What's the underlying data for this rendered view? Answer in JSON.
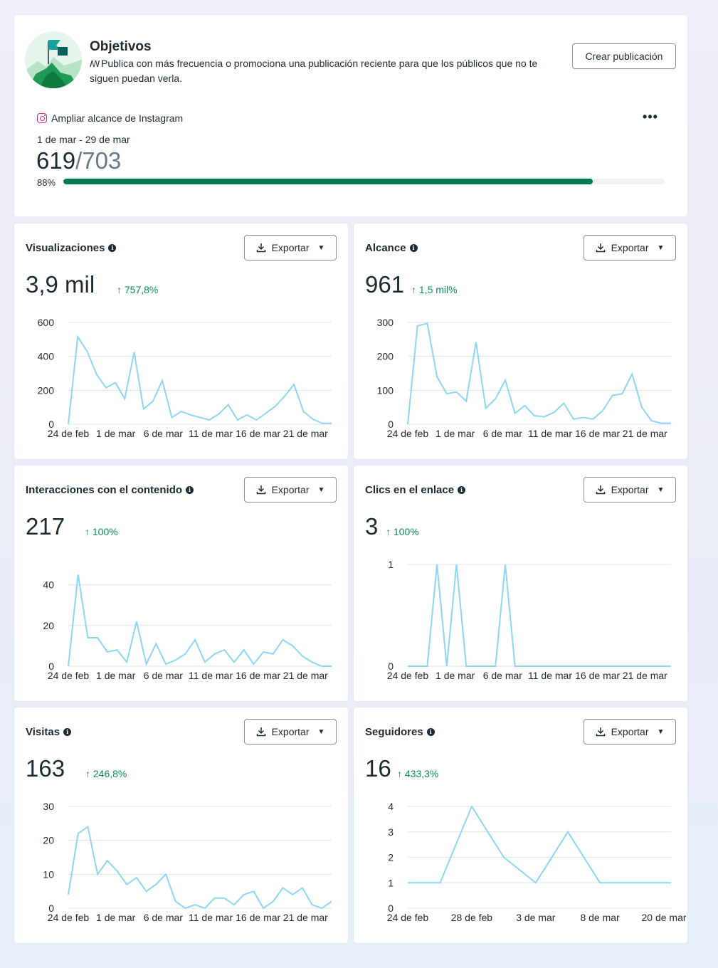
{
  "goals": {
    "title": "Objetivos",
    "description": "Publica con más frecuencia o promociona una publicación reciente para que los públicos que no te siguen puedan verla.",
    "create_button": "Crear publicación",
    "goal_name": "Ampliar alcance de Instagram",
    "more_icon": "more-horizontal-icon",
    "date_range": "1 de mar - 29 de mar",
    "current": "619",
    "target": "/703",
    "percent_label": "88%",
    "progress": 0.88,
    "progress_color": "#007a50"
  },
  "export_label": "Exportar",
  "accent_positive": "#0e8a5b",
  "line_color": "#8fd6f3",
  "metrics": [
    {
      "title": "Visualizaciones",
      "value": "3,9 mil",
      "delta": "↑ 757,8%",
      "chart_data": {
        "type": "line",
        "ylim": [
          0,
          600
        ],
        "yticks": [
          "0",
          "200",
          "400",
          "600"
        ],
        "xticks": [
          "24 de feb",
          "1 de mar",
          "6 de mar",
          "11 de mar",
          "16 de mar",
          "21 de mar"
        ],
        "values": [
          0,
          515,
          430,
          295,
          215,
          245,
          150,
          425,
          90,
          135,
          258,
          40,
          75,
          55,
          40,
          25,
          60,
          115,
          25,
          55,
          25,
          65,
          105,
          165,
          235,
          75,
          30,
          5,
          5
        ]
      }
    },
    {
      "title": "Alcance",
      "value": "961",
      "delta": "↑ 1,5 mil%",
      "chart_data": {
        "type": "line",
        "ylim": [
          0,
          300
        ],
        "yticks": [
          "0",
          "100",
          "200",
          "300"
        ],
        "xticks": [
          "24 de feb",
          "1 de mar",
          "6 de mar",
          "11 de mar",
          "16 de mar",
          "21 de mar"
        ],
        "values": [
          0,
          290,
          297,
          140,
          90,
          95,
          68,
          242,
          47,
          75,
          130,
          32,
          55,
          25,
          22,
          35,
          62,
          15,
          20,
          15,
          40,
          85,
          90,
          148,
          50,
          10,
          3,
          3
        ]
      }
    },
    {
      "title": "Interacciones con el contenido",
      "value": "217",
      "delta": "↑ 100%",
      "chart_data": {
        "type": "line",
        "ylim": [
          0,
          50
        ],
        "yticks": [
          "0",
          "20",
          "40"
        ],
        "xticks": [
          "24 de feb",
          "1 de mar",
          "6 de mar",
          "11 de mar",
          "16 de mar",
          "21 de mar"
        ],
        "values": [
          0,
          45,
          14,
          14,
          7,
          8,
          2,
          22,
          1,
          11,
          1,
          3,
          6,
          13,
          2,
          6,
          8,
          2,
          8,
          1,
          7,
          6,
          13,
          10,
          5,
          2,
          0,
          0
        ]
      }
    },
    {
      "title": "Clics en el enlace",
      "value": "3",
      "delta": "↑ 100%",
      "chart_data": {
        "type": "line",
        "ylim": [
          0,
          1
        ],
        "yticks": [
          "0",
          "1"
        ],
        "xticks": [
          "24 de feb",
          "1 de mar",
          "6 de mar",
          "11 de mar",
          "16 de mar",
          "21 de mar"
        ],
        "values": [
          0,
          0,
          0,
          1,
          0,
          1,
          0,
          0,
          0,
          0,
          1,
          0,
          0,
          0,
          0,
          0,
          0,
          0,
          0,
          0,
          0,
          0,
          0,
          0,
          0,
          0,
          0,
          0
        ]
      }
    },
    {
      "title": "Visitas",
      "value": "163",
      "delta": "↑ 246,8%",
      "chart_data": {
        "type": "line",
        "ylim": [
          0,
          30
        ],
        "yticks": [
          "0",
          "10",
          "20",
          "30"
        ],
        "xticks": [
          "24 de feb",
          "1 de mar",
          "6 de mar",
          "11 de mar",
          "16 de mar",
          "21 de mar"
        ],
        "values": [
          4,
          22,
          24,
          10,
          14,
          11,
          7,
          9,
          5,
          7,
          10,
          2,
          0,
          1,
          0,
          3,
          3,
          1,
          4,
          5,
          0,
          2,
          6,
          4,
          6,
          1,
          0,
          2
        ]
      }
    },
    {
      "title": "Seguidores",
      "value": "16",
      "delta": "↑ 433,3%",
      "chart_data": {
        "type": "line",
        "ylim": [
          0,
          4
        ],
        "yticks": [
          "0",
          "1",
          "2",
          "3",
          "4"
        ],
        "xticks": [
          "24 de feb",
          "28 de feb",
          "3 de mar",
          "8 de mar",
          "20 de mar"
        ],
        "x_tick_pos": [
          0,
          0.243,
          0.486,
          0.73,
          0.973
        ],
        "x": [
          0,
          0.123,
          0.243,
          0.365,
          0.486,
          0.608,
          0.73,
          1.0
        ],
        "values": [
          1,
          1,
          4,
          2,
          1,
          3,
          1,
          1
        ]
      }
    }
  ]
}
